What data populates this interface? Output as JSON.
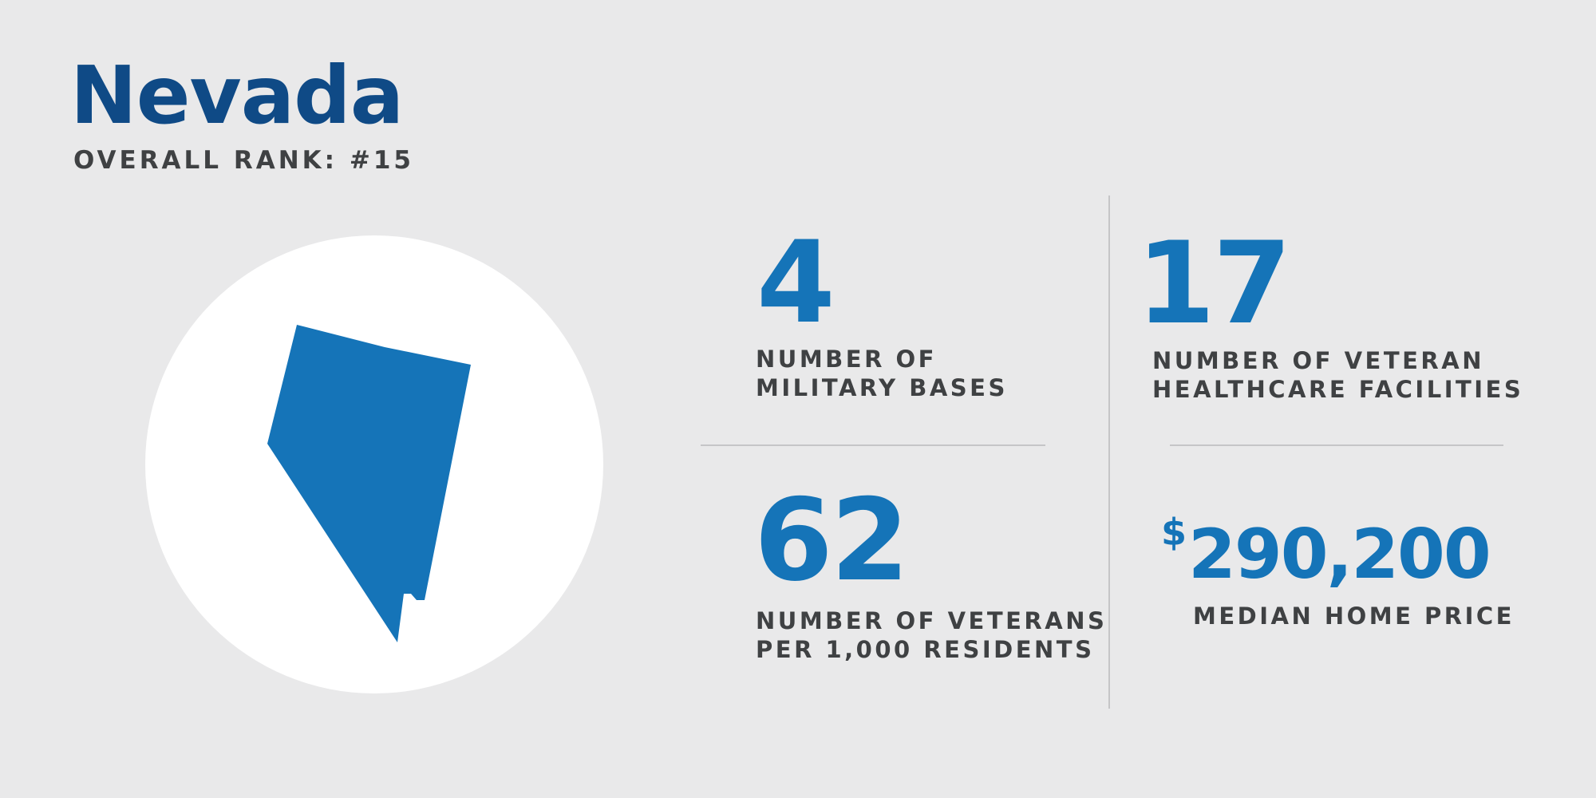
{
  "header": {
    "title": "Nevada",
    "subtitle": "OVERALL RANK: #15"
  },
  "colors": {
    "title": "#0f4a86",
    "accent": "#1574b8",
    "text": "#3f4143",
    "background": "#e9e9ea",
    "circle": "#ffffff"
  },
  "state_icon": "nevada-state-silhouette",
  "stats": {
    "military_bases": {
      "value": "4",
      "label_line1": "NUMBER OF",
      "label_line2": "MILITARY BASES"
    },
    "healthcare_facilities": {
      "value": "17",
      "label_line1": "NUMBER OF VETERAN",
      "label_line2": "HEALTHCARE FACILITIES"
    },
    "veterans_per_1000": {
      "value": "62",
      "label_line1": "NUMBER OF VETERANS",
      "label_line2": "PER 1,000 RESIDENTS"
    },
    "median_home_price": {
      "currency_symbol": "$",
      "value": "290,200",
      "label": "MEDIAN HOME PRICE"
    }
  }
}
